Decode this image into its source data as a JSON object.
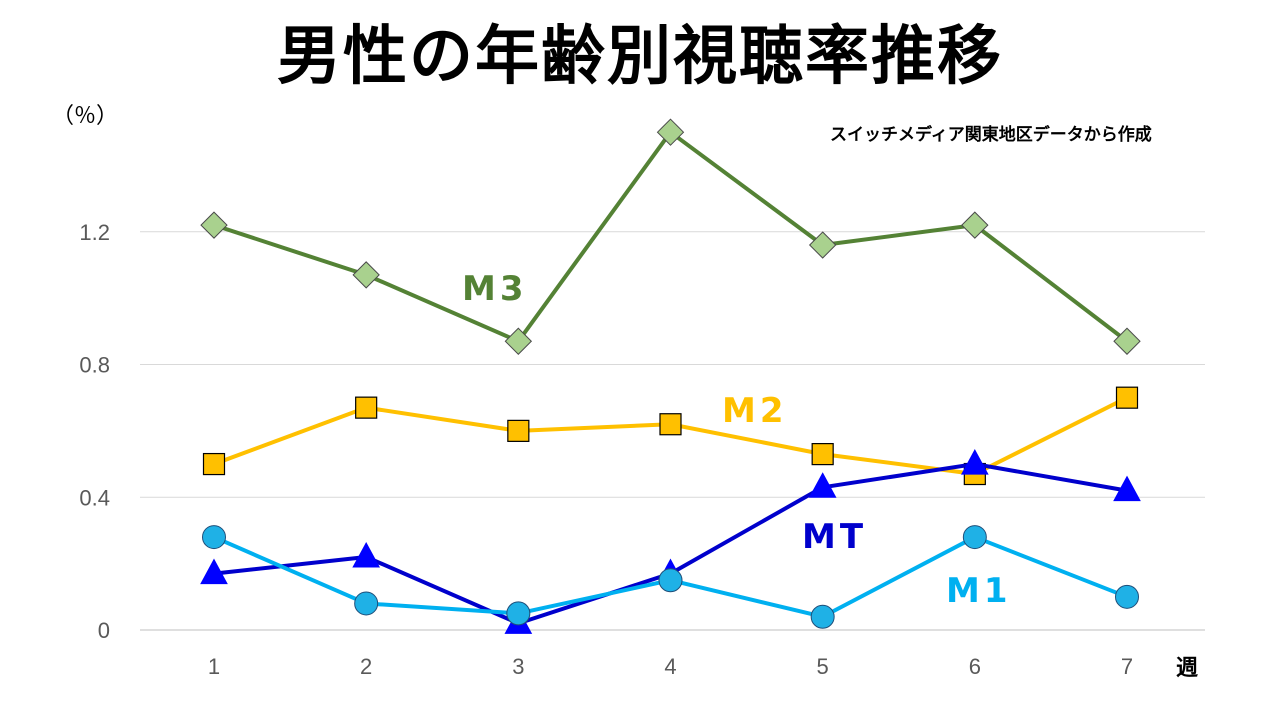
{
  "chart_data": {
    "type": "line",
    "title": "男性の年齢別視聴率推移",
    "unit_label": "（％）",
    "source_note": "スイッチメディア関東地区データから作成",
    "xlabel": "週",
    "ylabel": "",
    "x": [
      1,
      2,
      3,
      4,
      5,
      6,
      7
    ],
    "ylim": [
      0,
      1.6
    ],
    "yticks": [
      0,
      0.4,
      0.8,
      1.2
    ],
    "ytick_labels": [
      "0",
      "0.4",
      "0.8",
      "1.2"
    ],
    "grid": true,
    "series": [
      {
        "name": "M3",
        "color": "#548235",
        "marker": "diamond",
        "marker_color": "#a9d18e",
        "values": [
          1.22,
          1.07,
          0.87,
          1.5,
          1.16,
          1.22,
          0.87
        ]
      },
      {
        "name": "M2",
        "color": "#ffc000",
        "marker": "square",
        "marker_color": "#ffc000",
        "values": [
          0.5,
          0.67,
          0.6,
          0.62,
          0.53,
          0.47,
          0.7
        ]
      },
      {
        "name": "MT",
        "color": "#0000cc",
        "marker": "triangle",
        "marker_color": "#0000ff",
        "values": [
          0.17,
          0.22,
          0.02,
          0.17,
          0.43,
          0.5,
          0.42
        ]
      },
      {
        "name": "M1",
        "color": "#00b0f0",
        "marker": "circle",
        "marker_color": "#1fb1e6",
        "values": [
          0.28,
          0.08,
          0.05,
          0.15,
          0.04,
          0.28,
          0.1
        ]
      }
    ]
  }
}
